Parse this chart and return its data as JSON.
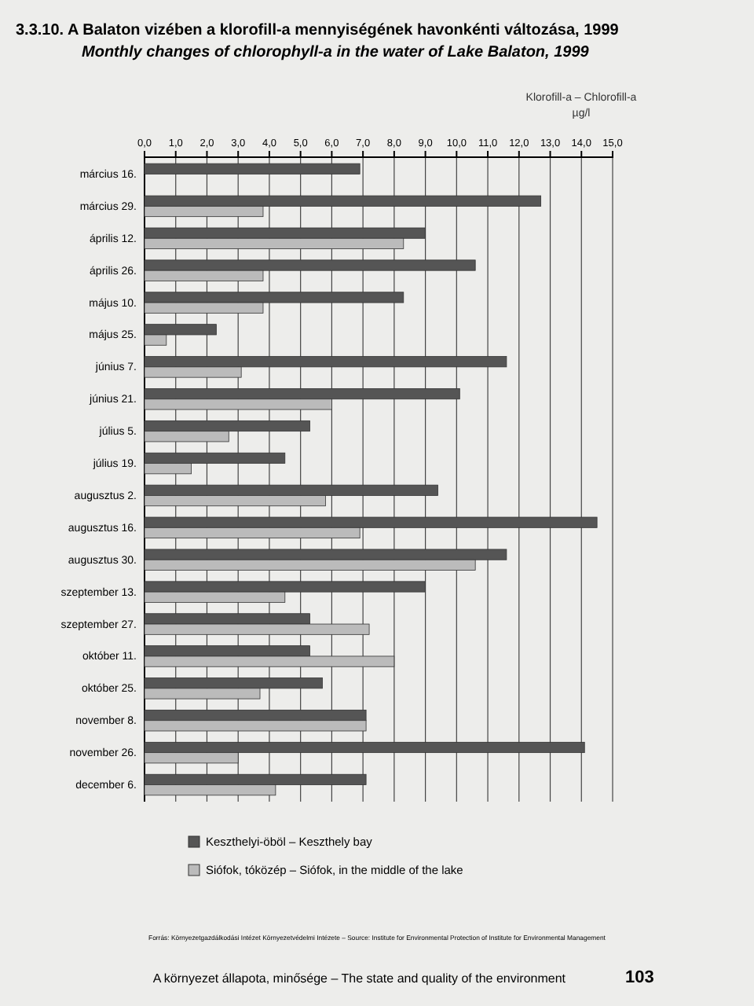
{
  "chart_data": {
    "type": "bar",
    "orientation": "horizontal",
    "title": "3.3.10. A Balaton vizében a klorofill-a mennyiségének havonkénti változása, 1999",
    "subtitle": "Monthly changes of chlorophyll-a in the water of Lake Balaton, 1999",
    "xlabel": "Klorofill-a – Chlorofill-a\nµg/l",
    "categories": [
      "március 16.",
      "március 29.",
      "április 12.",
      "április 26.",
      "május 10.",
      "május 25.",
      "június 7.",
      "június 21.",
      "július 5.",
      "július 19.",
      "augusztus 2.",
      "augusztus 16.",
      "augusztus 30.",
      "szeptember 13.",
      "szeptember 27.",
      "október 11.",
      "október 25.",
      "november 8.",
      "november 26.",
      "december 6."
    ],
    "series": [
      {
        "name": "Keszthelyi-öböl – Keszthely bay",
        "color": "#555555",
        "values": [
          6.9,
          12.7,
          9.0,
          10.6,
          8.3,
          2.3,
          11.6,
          10.1,
          5.3,
          4.5,
          9.4,
          14.5,
          11.6,
          9.0,
          5.3,
          5.3,
          5.7,
          7.1,
          14.1,
          7.1
        ]
      },
      {
        "name": "Siófok, tóközép – Siófok, in the middle of the lake",
        "color": "#bbbbbb",
        "values": [
          null,
          3.8,
          8.3,
          3.8,
          3.8,
          0.7,
          3.1,
          6.0,
          2.7,
          1.5,
          5.8,
          6.9,
          10.6,
          4.5,
          7.2,
          8.0,
          3.7,
          7.1,
          3.0,
          4.2
        ]
      }
    ],
    "xlim": [
      0,
      15
    ],
    "xticks": [
      {
        "value": 0,
        "label": "0,0"
      },
      {
        "value": 1,
        "label": "1,0"
      },
      {
        "value": 2,
        "label": "2,0"
      },
      {
        "value": 3,
        "label": "3,0"
      },
      {
        "value": 4,
        "label": "4,0"
      },
      {
        "value": 5,
        "label": "5,0"
      },
      {
        "value": 6,
        "label": "6,0"
      },
      {
        "value": 7,
        "label": "7,0"
      },
      {
        "value": 8,
        "label": "8,0"
      },
      {
        "value": 9,
        "label": "9,0"
      },
      {
        "value": 10,
        "label": "10,0"
      },
      {
        "value": 11,
        "label": "11,0"
      },
      {
        "value": 12,
        "label": "12,0"
      },
      {
        "value": 13,
        "label": "13,0"
      },
      {
        "value": 14,
        "label": "14,0"
      },
      {
        "value": 15,
        "label": "15,0"
      }
    ],
    "grid": "x",
    "legend": "bottom",
    "annotations": [
      "Forrás: Környezetgazdálkodási Intézet Környezetvédelmi Intézete – Source: Institute for Environmental Protection of Institute for Environmental Management",
      "A környezet állapota, minősége – The state and quality of the environment",
      "103"
    ]
  }
}
